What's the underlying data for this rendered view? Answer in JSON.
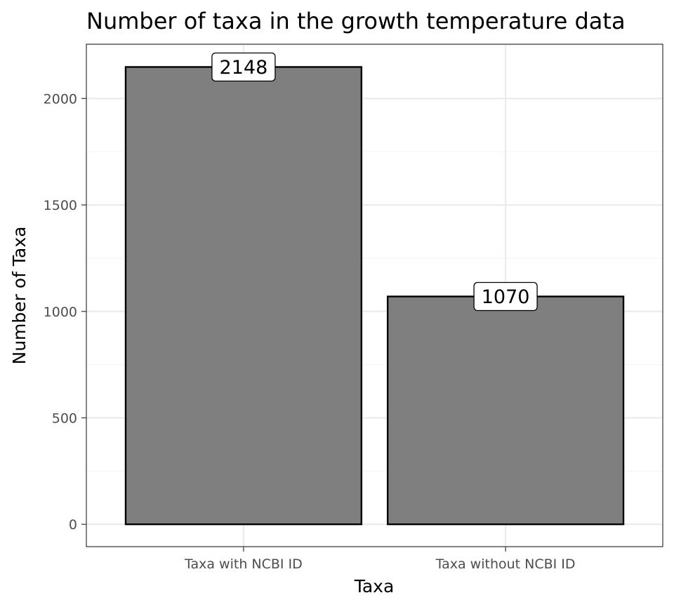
{
  "chart_data": {
    "type": "bar",
    "title": "Number of taxa in the growth temperature data",
    "xlabel": "Taxa",
    "ylabel": "Number of Taxa",
    "categories": [
      "Taxa with NCBI ID",
      "Taxa without NCBI ID"
    ],
    "values": [
      2148,
      1070
    ],
    "data_labels": [
      "2148",
      "1070"
    ],
    "ylim": [
      -105,
      2255
    ],
    "yticks": [
      0,
      500,
      1000,
      1500,
      2000
    ],
    "ytick_labels": [
      "0",
      "500",
      "1000",
      "1500",
      "2000"
    ],
    "grid": true,
    "legend": "none",
    "colors": {
      "bar_fill": "#7f7f7f",
      "bar_stroke": "#000000",
      "grid_major": "#ebebeb",
      "grid_minor": "#f5f5f5",
      "panel_border": "#333333",
      "tick_text": "#4d4d4d"
    }
  }
}
